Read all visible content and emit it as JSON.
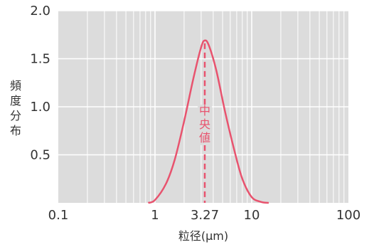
{
  "chart_data": {
    "type": "line",
    "title": "",
    "xlabel": "粒径(μm)",
    "ylabel": "頻度分布",
    "x_scale": "log",
    "xlim": [
      0.1,
      100
    ],
    "ylim": [
      0,
      2.0
    ],
    "x_ticks": [
      0.1,
      1,
      3.27,
      10,
      100
    ],
    "x_tick_labels": [
      "0.1",
      "1",
      "3.27",
      "10",
      "100"
    ],
    "y_ticks": [
      0.5,
      1.0,
      1.5,
      2.0
    ],
    "y_tick_labels": [
      "0.5",
      "1.0",
      "1.5",
      "2.0"
    ],
    "grid": true,
    "median": {
      "x": 3.27,
      "label": "中央値"
    },
    "series": [
      {
        "x": [
          0.85,
          1.0,
          1.3,
          1.6,
          2.0,
          2.5,
          3.0,
          3.27,
          3.6,
          4.3,
          5.3,
          6.6,
          8.0,
          10.0,
          12.5,
          15.0
        ],
        "y": [
          0.0,
          0.03,
          0.2,
          0.45,
          0.85,
          1.3,
          1.62,
          1.69,
          1.64,
          1.38,
          0.95,
          0.55,
          0.25,
          0.06,
          0.01,
          0.0
        ]
      }
    ],
    "colors": {
      "line": "#e8536e",
      "plot_bg": "#dcdcdc",
      "grid": "#ffffff",
      "text": "#333333"
    }
  }
}
